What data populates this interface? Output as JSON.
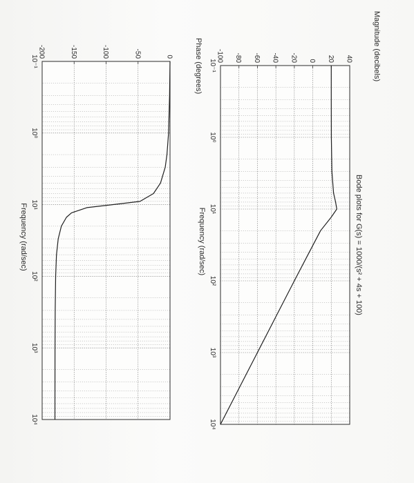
{
  "chart_data": [
    {
      "type": "line",
      "title": "Bode plots for G(s) = 1000/(s² + 4s + 100)",
      "ylabel": "Magnitude (decibels)",
      "xlabel": "Frequency (rad/sec)",
      "xscale": "log",
      "xlim": [
        0.1,
        10000
      ],
      "ylim": [
        -100,
        40
      ],
      "yticks": [
        "40",
        "20",
        "0",
        "-20",
        "-40",
        "-60",
        "-80",
        "-100"
      ],
      "xticks": [
        "10⁻¹",
        "10⁰",
        "10¹",
        "10²",
        "10³",
        "10⁴"
      ],
      "grid": true,
      "series": [
        {
          "x": [
            0.1,
            0.3,
            1,
            3,
            6,
            8,
            10,
            13,
            20,
            50,
            100,
            300,
            1000,
            3000,
            10000
          ],
          "values": [
            20,
            20,
            20.1,
            20.7,
            22.5,
            24.7,
            26,
            19.9,
            8.4,
            -7.8,
            -20,
            -39.1,
            -60,
            -79.1,
            -100
          ]
        }
      ]
    },
    {
      "type": "line",
      "ylabel": "Phase (degrees)",
      "xlabel": "Frequency (rad/sec)",
      "xscale": "log",
      "xlim": [
        0.1,
        10000
      ],
      "ylim": [
        -200,
        0
      ],
      "yticks": [
        "0",
        "-50",
        "-100",
        "-150",
        "-200"
      ],
      "xticks": [
        "10⁻¹",
        "10⁰",
        "10¹",
        "10²",
        "10³",
        "10⁴"
      ],
      "grid": true,
      "series": [
        {
          "x": [
            0.1,
            0.3,
            1,
            2,
            3,
            5,
            7,
            9,
            10,
            11,
            13,
            15,
            20,
            30,
            50,
            100,
            300,
            1000,
            10000
          ],
          "values": [
            0,
            -0.7,
            -2.3,
            -4.8,
            -7.5,
            -14.9,
            -25.9,
            -47,
            -90,
            -130,
            -154,
            -162,
            -170,
            -174.9,
            -177.6,
            -178.9,
            -179.6,
            -179.9,
            -180
          ]
        }
      ]
    }
  ]
}
